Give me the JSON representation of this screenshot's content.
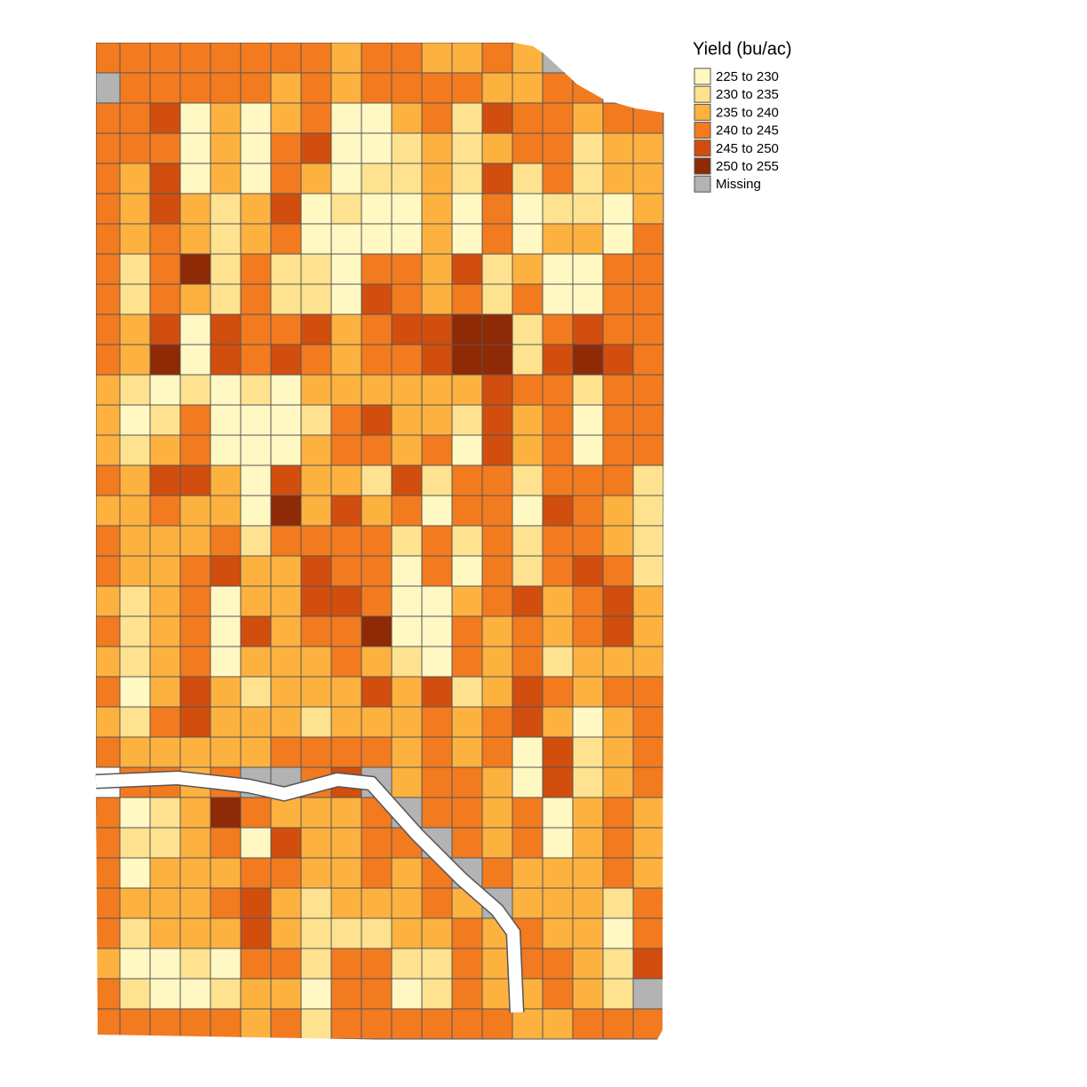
{
  "map": {
    "legend": {
      "title": "Yield (bu/ac)",
      "items": [
        {
          "label": "225 to 230",
          "color": "#fff8c2"
        },
        {
          "label": "230 to 235",
          "color": "#fee28f"
        },
        {
          "label": "235 to 240",
          "color": "#fdb13f"
        },
        {
          "label": "240 to 245",
          "color": "#f27a1f"
        },
        {
          "label": "245 to 250",
          "color": "#d14e0e"
        },
        {
          "label": "250 to 255",
          "color": "#8e2a05"
        },
        {
          "label": "Missing",
          "color": "#b3b3b3"
        }
      ]
    },
    "rows": [
      [
        3,
        3,
        3,
        3,
        3,
        3,
        3,
        3,
        2,
        3,
        3,
        2,
        2,
        3,
        2,
        6,
        null,
        null,
        null
      ],
      [
        6,
        3,
        3,
        3,
        3,
        3,
        2,
        3,
        2,
        3,
        3,
        3,
        3,
        2,
        2,
        3,
        3,
        null,
        null
      ],
      [
        3,
        3,
        4,
        0,
        2,
        0,
        2,
        3,
        0,
        0,
        2,
        3,
        1,
        4,
        3,
        3,
        2,
        3,
        3
      ],
      [
        3,
        3,
        3,
        0,
        2,
        0,
        3,
        4,
        0,
        0,
        1,
        2,
        1,
        2,
        3,
        3,
        1,
        2,
        2
      ],
      [
        3,
        2,
        4,
        0,
        2,
        0,
        3,
        2,
        0,
        1,
        1,
        2,
        1,
        4,
        1,
        3,
        1,
        2,
        2
      ],
      [
        3,
        2,
        4,
        2,
        1,
        2,
        4,
        0,
        1,
        0,
        0,
        2,
        0,
        3,
        0,
        1,
        1,
        0,
        2
      ],
      [
        3,
        2,
        3,
        2,
        1,
        2,
        3,
        0,
        0,
        0,
        0,
        2,
        0,
        3,
        0,
        2,
        2,
        0,
        3
      ],
      [
        3,
        1,
        3,
        5,
        1,
        3,
        1,
        1,
        0,
        3,
        3,
        2,
        4,
        1,
        2,
        0,
        0,
        3,
        3
      ],
      [
        3,
        1,
        3,
        2,
        1,
        3,
        1,
        1,
        0,
        4,
        3,
        2,
        3,
        1,
        3,
        0,
        0,
        3,
        3
      ],
      [
        3,
        2,
        4,
        0,
        4,
        3,
        3,
        4,
        2,
        3,
        4,
        4,
        5,
        5,
        1,
        3,
        4,
        3,
        3
      ],
      [
        3,
        2,
        5,
        0,
        4,
        3,
        4,
        3,
        2,
        3,
        3,
        4,
        5,
        5,
        1,
        4,
        5,
        4,
        3
      ],
      [
        2,
        1,
        0,
        1,
        0,
        1,
        0,
        2,
        2,
        2,
        2,
        2,
        2,
        4,
        3,
        3,
        1,
        3,
        3
      ],
      [
        2,
        0,
        1,
        3,
        0,
        0,
        0,
        1,
        3,
        4,
        2,
        2,
        1,
        4,
        2,
        3,
        0,
        3,
        3
      ],
      [
        2,
        1,
        2,
        3,
        0,
        0,
        0,
        2,
        3,
        3,
        2,
        3,
        0,
        4,
        2,
        3,
        0,
        3,
        3
      ],
      [
        3,
        2,
        4,
        4,
        2,
        0,
        4,
        2,
        2,
        1,
        4,
        1,
        3,
        3,
        1,
        3,
        3,
        3,
        1
      ],
      [
        2,
        2,
        3,
        2,
        2,
        0,
        5,
        2,
        4,
        2,
        3,
        0,
        3,
        3,
        0,
        4,
        3,
        2,
        1
      ],
      [
        3,
        2,
        2,
        2,
        3,
        1,
        3,
        3,
        3,
        3,
        1,
        3,
        1,
        3,
        1,
        3,
        3,
        2,
        1
      ],
      [
        3,
        2,
        2,
        3,
        4,
        2,
        2,
        4,
        3,
        3,
        0,
        3,
        0,
        3,
        1,
        3,
        4,
        3,
        1
      ],
      [
        2,
        1,
        2,
        3,
        0,
        2,
        2,
        4,
        4,
        3,
        0,
        0,
        2,
        3,
        4,
        2,
        3,
        4,
        2
      ],
      [
        3,
        1,
        2,
        3,
        0,
        4,
        2,
        3,
        3,
        5,
        0,
        0,
        3,
        2,
        3,
        2,
        3,
        4,
        2
      ],
      [
        2,
        1,
        2,
        3,
        0,
        2,
        2,
        2,
        3,
        2,
        1,
        0,
        3,
        2,
        3,
        1,
        2,
        2,
        2
      ],
      [
        3,
        0,
        2,
        4,
        2,
        1,
        2,
        2,
        2,
        4,
        2,
        4,
        1,
        2,
        4,
        3,
        2,
        3,
        3
      ],
      [
        2,
        1,
        3,
        4,
        2,
        2,
        2,
        1,
        2,
        2,
        2,
        3,
        2,
        3,
        4,
        2,
        0,
        2,
        3
      ],
      [
        3,
        2,
        2,
        2,
        2,
        2,
        3,
        3,
        3,
        3,
        2,
        3,
        2,
        3,
        0,
        4,
        1,
        2,
        3
      ],
      [
        null,
        3,
        3,
        2,
        3,
        6,
        6,
        3,
        4,
        6,
        2,
        3,
        3,
        2,
        0,
        4,
        1,
        2,
        3
      ],
      [
        3,
        0,
        1,
        2,
        5,
        3,
        2,
        2,
        2,
        3,
        6,
        3,
        3,
        2,
        3,
        0,
        2,
        3,
        2
      ],
      [
        3,
        1,
        1,
        2,
        3,
        0,
        4,
        2,
        2,
        3,
        3,
        6,
        3,
        2,
        3,
        0,
        2,
        3,
        2
      ],
      [
        3,
        0,
        2,
        2,
        2,
        3,
        3,
        2,
        2,
        3,
        2,
        3,
        6,
        3,
        2,
        2,
        2,
        3,
        2
      ],
      [
        3,
        2,
        2,
        2,
        3,
        4,
        2,
        1,
        2,
        2,
        2,
        3,
        2,
        6,
        2,
        2,
        2,
        1,
        3
      ],
      [
        3,
        1,
        2,
        2,
        2,
        4,
        2,
        1,
        1,
        1,
        2,
        2,
        3,
        2,
        3,
        2,
        2,
        0,
        3
      ],
      [
        2,
        0,
        0,
        1,
        0,
        3,
        3,
        1,
        3,
        3,
        1,
        1,
        3,
        2,
        3,
        3,
        2,
        1,
        4
      ],
      [
        3,
        1,
        0,
        0,
        1,
        2,
        2,
        0,
        3,
        3,
        0,
        1,
        3,
        2,
        2,
        3,
        2,
        1,
        6
      ],
      [
        3,
        3,
        3,
        3,
        3,
        2,
        3,
        1,
        3,
        3,
        3,
        3,
        3,
        3,
        2,
        2,
        3,
        3,
        3
      ]
    ]
  }
}
